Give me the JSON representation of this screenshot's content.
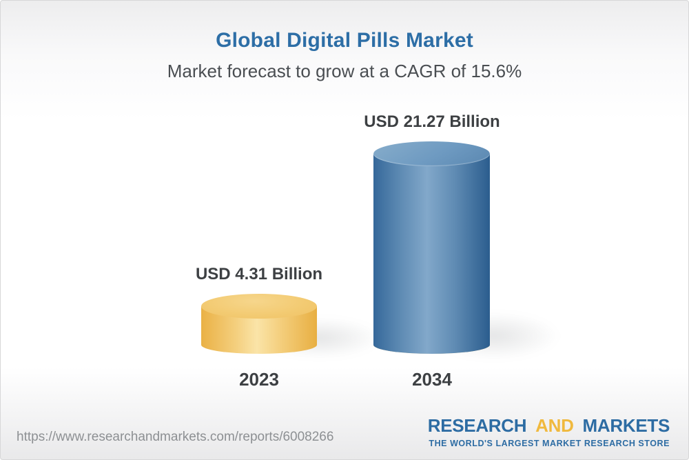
{
  "header": {
    "title": "Global Digital Pills Market",
    "subtitle": "Market forecast to grow at a CAGR of 15.6%"
  },
  "chart_data": {
    "type": "bar",
    "bar_style": "3d-cylinder",
    "title": "Global Digital Pills Market",
    "subtitle": "Market forecast to grow at a CAGR of 15.6%",
    "categories": [
      "2023",
      "2034"
    ],
    "values": [
      4.31,
      21.27
    ],
    "value_labels": [
      "USD 4.31 Billion",
      "USD 21.27 Billion"
    ],
    "unit": "USD Billion",
    "cagr_percent": 15.6,
    "grid": false,
    "legend": "none",
    "bar_colors": {
      "2023": "#f1c469",
      "2034": "#4d7fae",
      "2034_base_segment": "#f1c469"
    },
    "label_color": "#3d4043"
  },
  "footer": {
    "url": "https://www.researchandmarkets.com/reports/6008266",
    "logo": {
      "words": [
        "RESEARCH",
        "AND",
        "MARKETS"
      ],
      "tagline": "THE WORLD'S LARGEST MARKET RESEARCH STORE"
    }
  },
  "colors": {
    "title_blue": "#2d6ea6",
    "subtitle_gray": "#4a4e52",
    "logo_blue": "#2d6ca3",
    "logo_gold": "#f0b93e",
    "url_gray": "#8d9093"
  }
}
